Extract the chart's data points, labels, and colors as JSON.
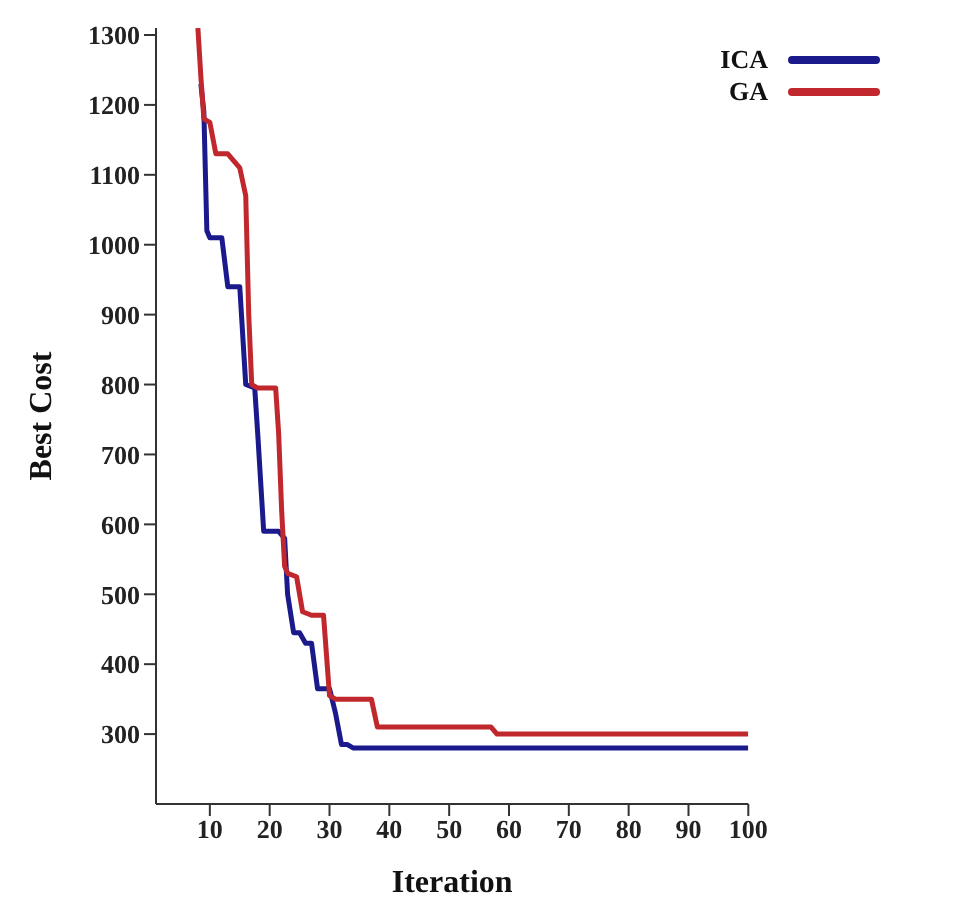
{
  "chart_data": {
    "type": "line",
    "xlabel": "Iteration",
    "ylabel": "Best Cost",
    "xlim": [
      1,
      100
    ],
    "xticks": [
      10,
      20,
      30,
      40,
      50,
      60,
      70,
      80,
      90,
      100
    ],
    "ylim": [
      200,
      1310
    ],
    "yticks": [
      300,
      400,
      500,
      600,
      700,
      800,
      900,
      1000,
      1100,
      1200,
      1300
    ],
    "grid": false,
    "legend": "top right",
    "marker": "none",
    "line_style": "solid",
    "series": [
      {
        "name": "ICA",
        "color": "#1a1a8c",
        "x": [
          8.5,
          9,
          9.5,
          10,
          12,
          13,
          15,
          16,
          17.5,
          18,
          19,
          21.5,
          22.5,
          23,
          24,
          25,
          26,
          27,
          28,
          30,
          31,
          32,
          33,
          34,
          100
        ],
        "values": [
          1230,
          1190,
          1020,
          1010,
          1010,
          940,
          940,
          800,
          795,
          730,
          590,
          590,
          580,
          500,
          445,
          445,
          430,
          430,
          365,
          365,
          330,
          285,
          285,
          280,
          280
        ]
      },
      {
        "name": "GA",
        "color": "#c0282d",
        "x": [
          8,
          8.5,
          9,
          10,
          11,
          13,
          14,
          15,
          16,
          16.5,
          17,
          18,
          19,
          21,
          21.5,
          22,
          22.5,
          23,
          24.5,
          25.5,
          27,
          29,
          30,
          31,
          37,
          38,
          57,
          58,
          100
        ],
        "values": [
          1310,
          1240,
          1180,
          1175,
          1130,
          1130,
          1120,
          1110,
          1070,
          900,
          800,
          795,
          795,
          795,
          730,
          620,
          540,
          530,
          525,
          475,
          470,
          470,
          355,
          350,
          350,
          310,
          310,
          300,
          300
        ]
      }
    ]
  }
}
